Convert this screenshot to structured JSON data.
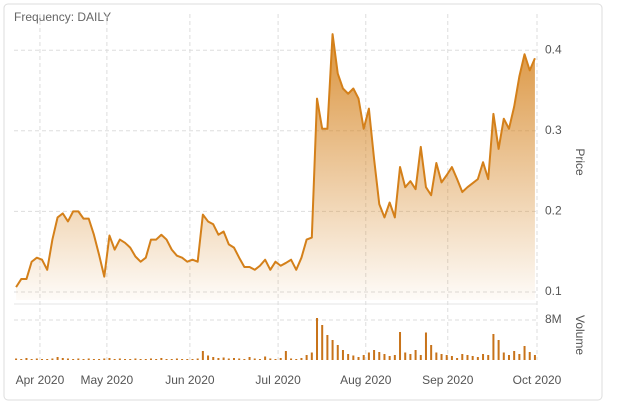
{
  "chart_data": [
    {
      "type": "area",
      "title": "Frequency: DAILY",
      "y_axis_label": "Price",
      "color": "#d4801a",
      "grid": true,
      "values": [
        0.106,
        0.116,
        0.116,
        0.1375,
        0.1425,
        0.14,
        0.1275,
        0.165,
        0.1925,
        0.1975,
        0.1875,
        0.2,
        0.2,
        0.191,
        0.191,
        0.171,
        0.146,
        0.119,
        0.17,
        0.1525,
        0.165,
        0.161,
        0.155,
        0.144,
        0.1375,
        0.1425,
        0.165,
        0.165,
        0.171,
        0.165,
        0.1525,
        0.145,
        0.1425,
        0.1375,
        0.14,
        0.1375,
        0.196,
        0.1875,
        0.184,
        0.171,
        0.175,
        0.159,
        0.155,
        0.1425,
        0.131,
        0.131,
        0.1275,
        0.1325,
        0.14,
        0.1275,
        0.1375,
        0.1325,
        0.136,
        0.14,
        0.1275,
        0.1425,
        0.165,
        0.1675,
        0.34,
        0.3025,
        0.3025,
        0.42,
        0.371,
        0.3525,
        0.346,
        0.3525,
        0.34,
        0.3025,
        0.3275,
        0.265,
        0.209,
        0.1925,
        0.211,
        0.1925,
        0.255,
        0.23,
        0.2375,
        0.2275,
        0.28,
        0.23,
        0.22,
        0.26,
        0.236,
        0.245,
        0.255,
        0.24,
        0.224,
        0.23,
        0.235,
        0.24,
        0.261,
        0.24,
        0.321,
        0.2775,
        0.315,
        0.3025,
        0.33,
        0.3675,
        0.395,
        0.375,
        0.39
      ],
      "xlim": [
        -0.4,
        100.4
      ],
      "xticks": [
        {
          "value": 4.6,
          "label": "Apr 2020"
        },
        {
          "value": 17.5,
          "label": "May 2020"
        },
        {
          "value": 33.5,
          "label": "Jun 2020"
        },
        {
          "value": 50.5,
          "label": "Jul 2020"
        },
        {
          "value": 67.4,
          "label": "Aug 2020"
        },
        {
          "value": 83.2,
          "label": "Sep 2020"
        },
        {
          "value": 100.4,
          "label": "Oct 2020"
        }
      ],
      "ylim": [
        0.09,
        0.44
      ],
      "yticks": [
        0.1,
        0.2,
        0.3,
        0.4
      ]
    },
    {
      "type": "bar",
      "y_axis_label": "Volume",
      "color": "#c8731a",
      "values": [
        300000,
        200000,
        400000,
        200000,
        300000,
        200000,
        200000,
        300000,
        600000,
        400000,
        300000,
        200000,
        300000,
        200000,
        300000,
        200000,
        200000,
        300000,
        400000,
        200000,
        300000,
        200000,
        200000,
        300000,
        200000,
        200000,
        300000,
        200000,
        400000,
        200000,
        200000,
        300000,
        200000,
        200000,
        200000,
        300000,
        1800000,
        900000,
        600000,
        400000,
        500000,
        300000,
        400000,
        300000,
        200000,
        600000,
        300000,
        200000,
        700000,
        300000,
        200000,
        400000,
        1800000,
        300000,
        200000,
        400000,
        1000000,
        1500000,
        8400000,
        7000000,
        5000000,
        4000000,
        3000000,
        2000000,
        1200000,
        900000,
        600000,
        1000000,
        1500000,
        2000000,
        1600000,
        1200000,
        800000,
        1000000,
        5600000,
        1500000,
        1200000,
        2000000,
        1000000,
        5500000,
        3000000,
        1500000,
        1200000,
        1000000,
        800000,
        400000,
        1200000,
        1000000,
        800000,
        600000,
        1200000,
        1000000,
        5200000,
        4000000,
        1500000,
        1000000,
        1800000,
        1200000,
        2800000,
        1600000,
        1000000
      ],
      "ylim": [
        0,
        10400000
      ],
      "yticks": [
        {
          "value": 8000000,
          "label": "8M"
        }
      ]
    }
  ]
}
